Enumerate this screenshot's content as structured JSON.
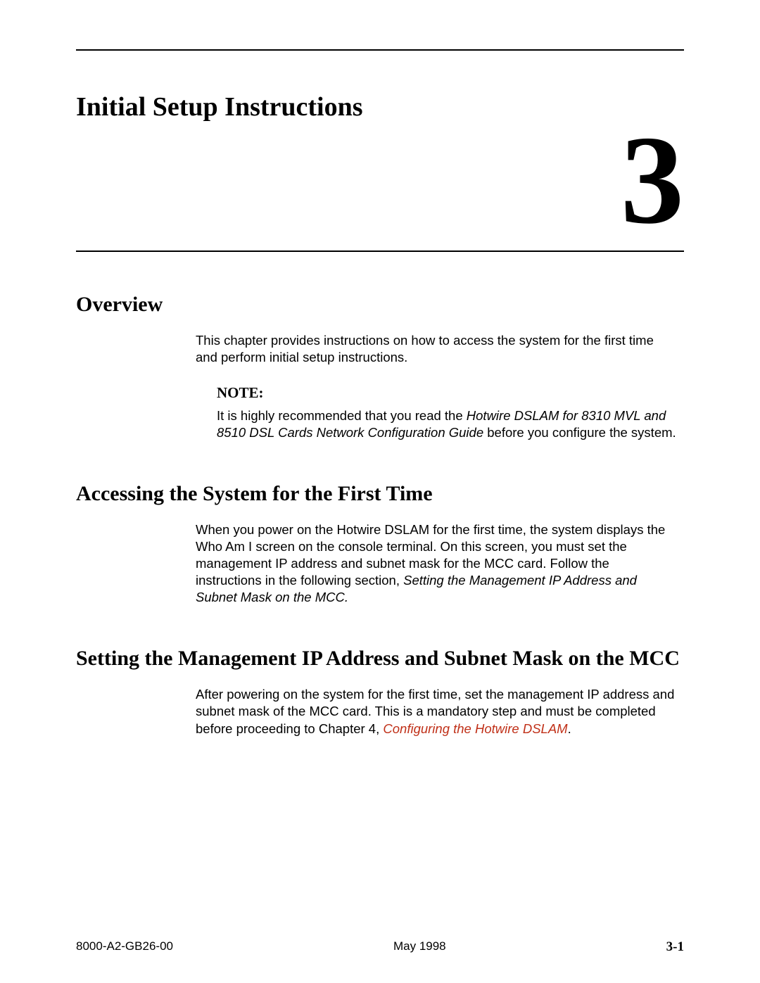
{
  "chapter": {
    "title": "Initial Setup Instructions",
    "number": "3"
  },
  "sections": {
    "overview": {
      "heading": "Overview",
      "body": "This chapter provides instructions on how to access the system for the first time and perform initial setup instructions.",
      "note": {
        "label": "NOTE:",
        "pre": "It is highly recommended that you read the ",
        "italic": "Hotwire DSLAM for 8310 MVL and 8510 DSL Cards Network Configuration Guide",
        "post": " before you configure the system."
      }
    },
    "accessing": {
      "heading": "Accessing the System for the First Time",
      "body_pre": "When you power on the Hotwire DSLAM for the first time, the system displays the Who Am I screen on the console terminal. On this screen, you must set the management IP address and subnet mask for the MCC card. Follow the instructions in the following section, ",
      "body_italic": "Setting the Management IP Address and Subnet Mask on the MCC."
    },
    "setting": {
      "heading": "Setting the Management IP Address and Subnet Mask on the MCC",
      "body_pre": "After powering on the system for the first time, set the management IP address and subnet mask of the MCC card. This is a mandatory step and must be completed before proceeding to Chapter 4, ",
      "body_link": "Configuring the Hotwire DSLAM",
      "body_post": "."
    }
  },
  "footer": {
    "left": "8000-A2-GB26-00",
    "center": "May 1998",
    "right": "3-1"
  },
  "colors": {
    "text": "#000000",
    "background": "#ffffff",
    "link": "#c03018",
    "rule": "#000000"
  }
}
